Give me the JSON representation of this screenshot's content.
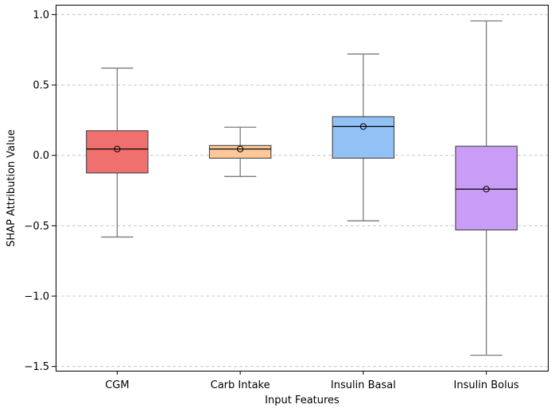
{
  "chart_data": {
    "type": "box",
    "title": "",
    "xlabel": "Input Features",
    "ylabel": "SHAP Attribution Value",
    "ylim": [
      -1.53,
      1.07
    ],
    "yticks": [
      {
        "value": 1.0,
        "label": "1.0"
      },
      {
        "value": 0.5,
        "label": "0.5"
      },
      {
        "value": 0.0,
        "label": "0.0"
      },
      {
        "value": -0.5,
        "label": "−0.5"
      },
      {
        "value": -1.0,
        "label": "−1.0"
      },
      {
        "value": -1.5,
        "label": "−1.5"
      }
    ],
    "grid": "y-dashed",
    "categories": [
      "CGM",
      "Carb Intake",
      "Insulin Basal",
      "Insulin Bolus"
    ],
    "boxes": [
      {
        "category": "CGM",
        "whisker_low": -0.58,
        "q1": -0.125,
        "median": 0.045,
        "q3": 0.175,
        "whisker_high": 0.62,
        "mean": 0.045,
        "color": "#f07070"
      },
      {
        "category": "Carb Intake",
        "whisker_low": -0.15,
        "q1": -0.02,
        "median": 0.045,
        "q3": 0.07,
        "whisker_high": 0.2,
        "mean": 0.045,
        "color": "#fcc89a"
      },
      {
        "category": "Insulin Basal",
        "whisker_low": -0.465,
        "q1": -0.02,
        "median": 0.205,
        "q3": 0.275,
        "whisker_high": 0.72,
        "mean": 0.205,
        "color": "#91c1f5"
      },
      {
        "category": "Insulin Bolus",
        "whisker_low": -1.42,
        "q1": -0.53,
        "median": -0.24,
        "q3": 0.065,
        "whisker_high": 0.955,
        "mean": -0.24,
        "color": "#c99cf5"
      }
    ]
  }
}
